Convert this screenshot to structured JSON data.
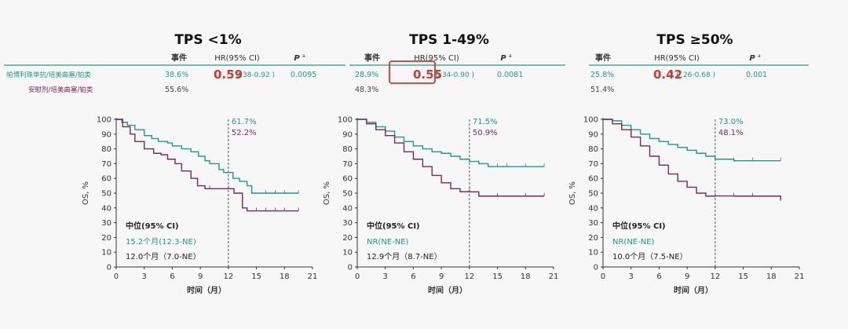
{
  "header": {
    "col_events": "事件",
    "col_hr": "HR(95% CI)",
    "col_p": "P",
    "col_p_sup": "a",
    "arm1_label": "帕博利珠单抗/培美曲塞/铂类",
    "arm2_label": "安慰剂/培美曲塞/铂类"
  },
  "colors": {
    "pembro": "#1e9a86",
    "placebo": "#7a2a52",
    "hr": "#d9342e",
    "text": "#333333"
  },
  "chart_data": [
    {
      "type": "line",
      "title": "TPS <1%",
      "xlabel": "时间（月）",
      "ylabel": "OS, %",
      "xticks": [
        0,
        3,
        6,
        9,
        12,
        15,
        18,
        21
      ],
      "yticks": [
        0,
        10,
        20,
        30,
        40,
        50,
        60,
        70,
        80,
        90,
        100
      ],
      "xlim": [
        0,
        21
      ],
      "ylim": [
        0,
        100
      ],
      "table": {
        "events_pembro": "38.6%",
        "hr": "0.59",
        "ci": "( 0.38-0.92 )",
        "p": "0.0095",
        "events_placebo": "55.6%"
      },
      "landmark": {
        "x": 12,
        "pembro": "61.7%",
        "placebo": "52.2%"
      },
      "median_header": "中位(95% CI)",
      "median_pembro": "15.2个月(12.3-NE)",
      "median_placebo": "12.0个月（7.0-NE）",
      "series": [
        {
          "key": "pembro",
          "x": [
            0,
            0.6,
            1.2,
            2,
            3,
            3.8,
            4.5,
            5.5,
            6,
            7,
            8,
            8.8,
            9.5,
            10,
            11,
            11.5,
            12.5,
            13.2,
            14,
            14.5,
            16,
            17,
            18,
            19.5
          ],
          "y": [
            100,
            98,
            96,
            93,
            89,
            87,
            85,
            84,
            82,
            80,
            78,
            75,
            72,
            70,
            66,
            64,
            60,
            58,
            55,
            50,
            50,
            50,
            50,
            50
          ]
        },
        {
          "key": "placebo",
          "x": [
            0,
            0.7,
            1.5,
            2,
            3,
            4,
            4.8,
            5.5,
            6.3,
            7,
            8,
            8.7,
            9.5,
            10,
            12,
            12.6,
            13.5,
            14,
            15,
            16,
            17,
            18,
            19.5
          ],
          "y": [
            100,
            95,
            90,
            85,
            80,
            77,
            76,
            73,
            70,
            65,
            60,
            55,
            53,
            53,
            53,
            50,
            40,
            38,
            38,
            38,
            38,
            38,
            38
          ]
        }
      ]
    },
    {
      "type": "line",
      "title": "TPS 1-49%",
      "xlabel": "时间（月）",
      "ylabel": "OS, %",
      "xticks": [
        0,
        3,
        6,
        9,
        12,
        15,
        18,
        21
      ],
      "yticks": [
        0,
        10,
        20,
        30,
        40,
        50,
        60,
        70,
        80,
        90,
        100
      ],
      "xlim": [
        0,
        21
      ],
      "ylim": [
        0,
        100
      ],
      "table": {
        "events_pembro": "28.9%",
        "hr": "0.55",
        "ci": "( 0.34-0.90 )",
        "p": "0.0081",
        "events_placebo": "48.3%"
      },
      "landmark": {
        "x": 12,
        "pembro": "71.5%",
        "placebo": "50.9%"
      },
      "median_header": "中位(95% CI)",
      "median_pembro": "NR(NE-NE)",
      "median_placebo": "12.9个月（8.7-NE）",
      "series": [
        {
          "key": "pembro",
          "x": [
            0,
            1,
            2,
            3,
            4,
            5,
            6,
            7,
            8,
            9,
            10,
            11,
            12,
            13,
            14,
            15,
            16,
            18,
            20
          ],
          "y": [
            100,
            98,
            95,
            92,
            88,
            85,
            82,
            80,
            78,
            77,
            75,
            73,
            71.5,
            70,
            68,
            68,
            68,
            68,
            68
          ]
        },
        {
          "key": "placebo",
          "x": [
            0,
            1,
            2,
            3,
            4,
            5,
            6,
            7,
            8,
            9,
            10,
            11,
            12,
            13,
            15,
            18,
            20
          ],
          "y": [
            100,
            97,
            93,
            89,
            84,
            78,
            73,
            68,
            62,
            57,
            53,
            51,
            50.9,
            48,
            48,
            48,
            48
          ]
        }
      ]
    },
    {
      "type": "line",
      "title": "TPS ≥50%",
      "xlabel": "时间（月）",
      "ylabel": "OS, %",
      "xticks": [
        0,
        3,
        6,
        9,
        12,
        15,
        18,
        21
      ],
      "yticks": [
        0,
        10,
        20,
        30,
        40,
        50,
        60,
        70,
        80,
        90,
        100
      ],
      "xlim": [
        0,
        21
      ],
      "ylim": [
        0,
        100
      ],
      "table": {
        "events_pembro": "25.8%",
        "hr": "0.42",
        "ci": "( 0.26-0.68 )",
        "p": "0.001",
        "events_placebo": "51.4%"
      },
      "landmark": {
        "x": 12,
        "pembro": "73.0%",
        "placebo": "48.1%"
      },
      "median_header": "中位(95% CI)",
      "median_pembro": "NR(NE-NE)",
      "median_placebo": "10.0个月（7.5-NE）",
      "series": [
        {
          "key": "pembro",
          "x": [
            0,
            1,
            2,
            3,
            4,
            5,
            6,
            7,
            8,
            9,
            10,
            11,
            12,
            14,
            16,
            19
          ],
          "y": [
            100,
            99,
            96,
            93,
            90,
            87,
            85,
            83,
            81,
            79,
            77,
            75,
            73,
            72,
            72,
            72
          ]
        },
        {
          "key": "placebo",
          "x": [
            0,
            1,
            2,
            3,
            4,
            5,
            6,
            7,
            8,
            9,
            10,
            11,
            12,
            14,
            16,
            19
          ],
          "y": [
            100,
            97,
            93,
            88,
            82,
            75,
            69,
            63,
            58,
            54,
            50,
            48,
            48.1,
            48,
            48,
            45
          ]
        }
      ]
    }
  ]
}
